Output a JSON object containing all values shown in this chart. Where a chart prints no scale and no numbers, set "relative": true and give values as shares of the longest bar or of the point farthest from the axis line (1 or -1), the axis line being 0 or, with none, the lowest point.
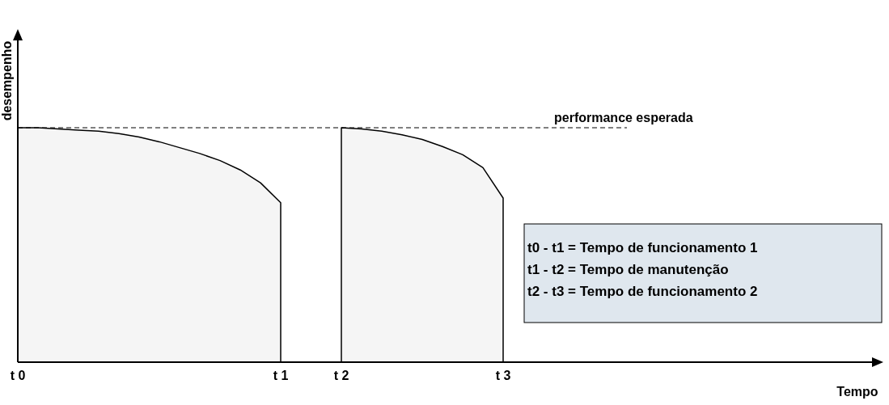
{
  "chart_data": {
    "type": "area",
    "relative": true,
    "xlabel": "Tempo",
    "ylabel": "desempenho",
    "categories": [
      "t 0",
      null,
      null,
      null,
      null,
      null,
      null,
      null,
      null,
      null,
      null,
      null,
      null,
      "t 1",
      null,
      null,
      "t 2",
      null,
      null,
      null,
      null,
      null,
      null,
      null,
      "t 3",
      null,
      null,
      null,
      null,
      null,
      null,
      null,
      null,
      null,
      null,
      null,
      null,
      null,
      null,
      null,
      null,
      null,
      null
    ],
    "tick_labels": "x",
    "grid": false,
    "marker": "none",
    "line_style": "solid",
    "series": [
      {
        "color": "#000000",
        "values": [
          1,
          1,
          0.995,
          0.99,
          0.985,
          0.975,
          0.96,
          0.94,
          0.915,
          0.89,
          0.86,
          0.82,
          0.765,
          0.68,
          null,
          null,
          null,
          null,
          null,
          null,
          null,
          null,
          null,
          null,
          null,
          null,
          null,
          null,
          null,
          null,
          null,
          null,
          null,
          null,
          null,
          null,
          null,
          null,
          null,
          null,
          null,
          null,
          null
        ]
      },
      {
        "color": "#000000",
        "values": [
          null,
          null,
          null,
          null,
          null,
          null,
          null,
          null,
          null,
          null,
          null,
          null,
          null,
          null,
          null,
          null,
          1,
          0.995,
          0.985,
          0.97,
          0.95,
          0.92,
          0.885,
          0.83,
          0.7,
          null,
          null,
          null,
          null,
          null,
          null,
          null,
          null,
          null,
          null,
          null,
          null,
          null,
          null,
          null,
          null,
          null,
          null
        ]
      }
    ],
    "ref_lines": [
      {
        "axis": "y",
        "value": 1,
        "label": "performance esperada",
        "line_style": "dashed",
        "color": "#000000"
      }
    ],
    "annotations": [
      "t0 - t1 = Tempo de funcionamento 1",
      "t1 - t2 = Tempo de manutenção",
      "t2 - t3 = Tempo de funcionamento 2"
    ]
  }
}
